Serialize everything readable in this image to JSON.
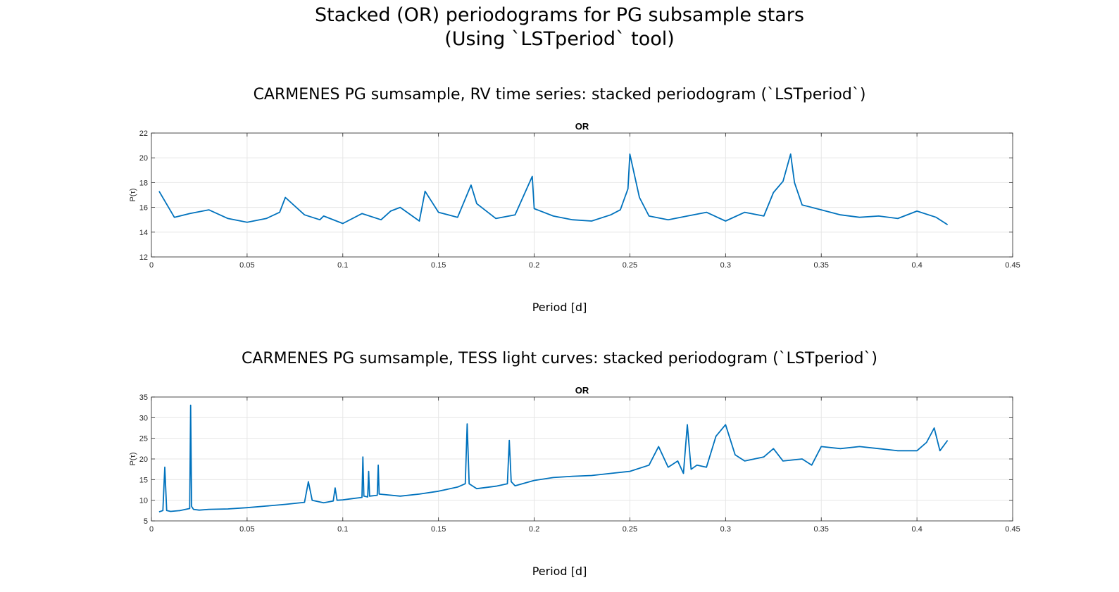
{
  "figure": {
    "title_line1": "Stacked (OR) periodograms for PG subsample stars",
    "title_line2": "(Using `LSTperiod` tool)"
  },
  "panels": [
    {
      "subtitle": "CARMENES PG sumsample, RV time series: stacked periodogram (`LSTperiod`)",
      "xlabel_outer": "Period [d]"
    },
    {
      "subtitle": "CARMENES PG sumsample, TESS light curves: stacked periodogram (`LSTperiod`)",
      "xlabel_outer": "Period [d]"
    }
  ],
  "colors": {
    "line": "#0072BD",
    "grid": "#e6e6e6",
    "axes": "#262626"
  },
  "chart_data": [
    {
      "type": "line",
      "title": "OR",
      "xlabel": "Period [d]",
      "ylabel": "P(τ)",
      "xlim": [
        0,
        0.45
      ],
      "ylim": [
        12,
        22
      ],
      "xticks": [
        0,
        0.05,
        0.1,
        0.15,
        0.2,
        0.25,
        0.3,
        0.35,
        0.4,
        0.45
      ],
      "yticks": [
        12,
        14,
        16,
        18,
        20,
        22
      ],
      "grid": true,
      "series": [
        {
          "x": [
            0.004,
            0.012,
            0.02,
            0.03,
            0.04,
            0.05,
            0.06,
            0.067,
            0.07,
            0.08,
            0.088,
            0.09,
            0.1,
            0.11,
            0.12,
            0.125,
            0.13,
            0.14,
            0.143,
            0.15,
            0.16,
            0.167,
            0.17,
            0.18,
            0.19,
            0.199,
            0.2,
            0.21,
            0.22,
            0.23,
            0.24,
            0.245,
            0.249,
            0.25,
            0.255,
            0.26,
            0.27,
            0.28,
            0.29,
            0.3,
            0.31,
            0.32,
            0.325,
            0.33,
            0.334,
            0.336,
            0.34,
            0.35,
            0.36,
            0.37,
            0.38,
            0.39,
            0.4,
            0.41,
            0.416
          ],
          "y": [
            17.3,
            15.2,
            15.5,
            15.8,
            15.1,
            14.8,
            15.1,
            15.6,
            16.8,
            15.4,
            15.0,
            15.3,
            14.7,
            15.5,
            15.0,
            15.7,
            16.0,
            14.9,
            17.3,
            15.6,
            15.2,
            17.8,
            16.3,
            15.1,
            15.4,
            18.5,
            15.9,
            15.3,
            15.0,
            14.9,
            15.4,
            15.8,
            17.5,
            20.3,
            16.8,
            15.3,
            15.0,
            15.3,
            15.6,
            14.9,
            15.6,
            15.3,
            17.2,
            18.1,
            20.3,
            18.0,
            16.2,
            15.8,
            15.4,
            15.2,
            15.3,
            15.1,
            15.7,
            15.2,
            14.6
          ]
        }
      ]
    },
    {
      "type": "line",
      "title": "OR",
      "xlabel": "Period [d]",
      "ylabel": "P(τ)",
      "xlim": [
        0,
        0.45
      ],
      "ylim": [
        5,
        35
      ],
      "xticks": [
        0,
        0.05,
        0.1,
        0.15,
        0.2,
        0.25,
        0.3,
        0.35,
        0.4,
        0.45
      ],
      "yticks": [
        5,
        10,
        15,
        20,
        25,
        30,
        35
      ],
      "grid": true,
      "series": [
        {
          "x": [
            0.004,
            0.006,
            0.007,
            0.008,
            0.01,
            0.015,
            0.02,
            0.0205,
            0.021,
            0.022,
            0.025,
            0.03,
            0.04,
            0.05,
            0.06,
            0.07,
            0.08,
            0.082,
            0.084,
            0.09,
            0.095,
            0.096,
            0.097,
            0.1,
            0.105,
            0.11,
            0.1105,
            0.111,
            0.113,
            0.1135,
            0.114,
            0.118,
            0.1185,
            0.119,
            0.13,
            0.14,
            0.15,
            0.16,
            0.164,
            0.165,
            0.166,
            0.17,
            0.18,
            0.186,
            0.187,
            0.188,
            0.19,
            0.2,
            0.21,
            0.22,
            0.23,
            0.24,
            0.25,
            0.26,
            0.265,
            0.27,
            0.275,
            0.278,
            0.28,
            0.282,
            0.285,
            0.29,
            0.295,
            0.3,
            0.305,
            0.31,
            0.32,
            0.325,
            0.33,
            0.34,
            0.345,
            0.35,
            0.36,
            0.37,
            0.38,
            0.39,
            0.4,
            0.405,
            0.409,
            0.412,
            0.416
          ],
          "y": [
            7.2,
            7.5,
            18,
            7.5,
            7.3,
            7.5,
            8.0,
            33,
            8.5,
            7.8,
            7.6,
            7.8,
            7.9,
            8.2,
            8.6,
            9.0,
            9.5,
            14.5,
            10.0,
            9.4,
            9.8,
            13,
            10,
            10.1,
            10.4,
            10.7,
            20.5,
            11,
            10.8,
            17,
            11,
            11.2,
            18.5,
            11.5,
            11.0,
            11.5,
            12.2,
            13.2,
            14,
            28.5,
            14,
            12.8,
            13.4,
            14,
            24.5,
            14.5,
            13.5,
            14.8,
            15.5,
            15.8,
            16.0,
            16.5,
            17.0,
            18.5,
            23,
            18.0,
            19.5,
            16.5,
            28.3,
            17.5,
            18.5,
            18.0,
            25.5,
            28.3,
            21.0,
            19.5,
            20.5,
            22.5,
            19.5,
            20.0,
            18.5,
            23.0,
            22.5,
            23.0,
            22.5,
            22.0,
            22.0,
            24.0,
            27.5,
            22.0,
            24.5
          ]
        }
      ]
    }
  ]
}
